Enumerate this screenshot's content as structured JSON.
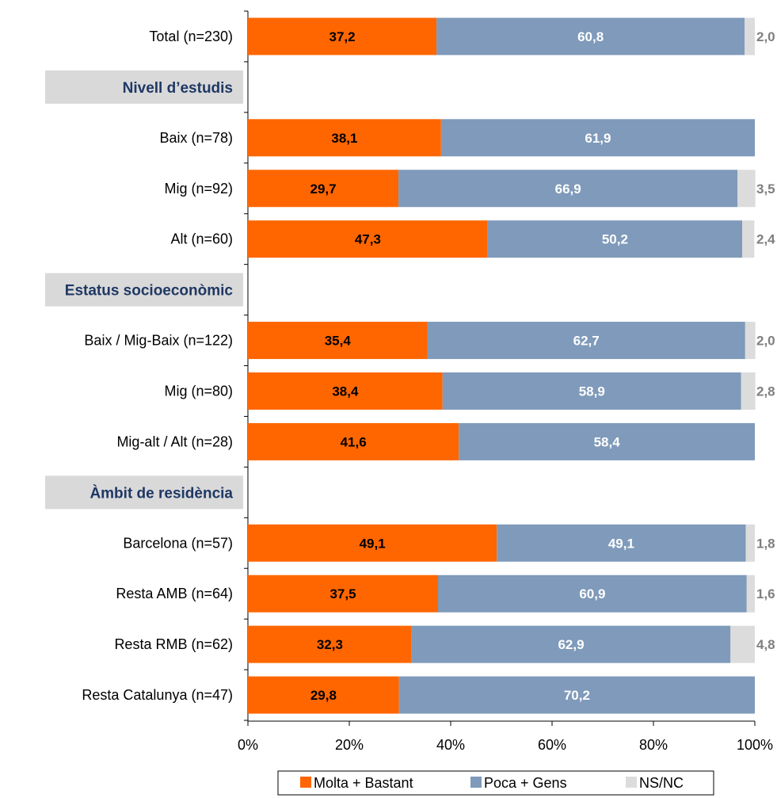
{
  "chart_data": {
    "type": "bar",
    "orientation": "horizontal",
    "stacked": true,
    "xlim": [
      0,
      100
    ],
    "x_ticks": [
      "0%",
      "20%",
      "40%",
      "60%",
      "80%",
      "100%"
    ],
    "legend_position": "bottom",
    "series": [
      {
        "name": "Molta + Bastant",
        "color": "#ff6600",
        "label_color": "#000000"
      },
      {
        "name": "Poca + Gens",
        "color": "#7f9aba",
        "label_color": "#ffffff"
      },
      {
        "name": "NS/NC",
        "color": "#dcdcdc",
        "label_color": "#7f7f7f"
      }
    ],
    "rows": [
      {
        "kind": "bar",
        "label": "Total (n=230)",
        "values": [
          37.2,
          60.8,
          2.0
        ],
        "labels": [
          "37,2",
          "60,8",
          "2,0"
        ]
      },
      {
        "kind": "section",
        "label": "Nivell d’estudis"
      },
      {
        "kind": "bar",
        "label": "Baix (n=78)",
        "values": [
          38.1,
          61.9,
          0
        ],
        "labels": [
          "38,1",
          "61,9",
          ""
        ]
      },
      {
        "kind": "bar",
        "label": "Mig (n=92)",
        "values": [
          29.7,
          66.9,
          3.5
        ],
        "labels": [
          "29,7",
          "66,9",
          "3,5"
        ]
      },
      {
        "kind": "bar",
        "label": "Alt (n=60)",
        "values": [
          47.3,
          50.2,
          2.4
        ],
        "labels": [
          "47,3",
          "50,2",
          "2,4"
        ]
      },
      {
        "kind": "section",
        "label": "Estatus socioeconòmic"
      },
      {
        "kind": "bar",
        "label": "Baix / Mig-Baix (n=122)",
        "values": [
          35.4,
          62.7,
          2.0
        ],
        "labels": [
          "35,4",
          "62,7",
          "2,0"
        ]
      },
      {
        "kind": "bar",
        "label": "Mig (n=80)",
        "values": [
          38.4,
          58.9,
          2.8
        ],
        "labels": [
          "38,4",
          "58,9",
          "2,8"
        ]
      },
      {
        "kind": "bar",
        "label": "Mig-alt / Alt (n=28)",
        "values": [
          41.6,
          58.4,
          0
        ],
        "labels": [
          "41,6",
          "58,4",
          ""
        ]
      },
      {
        "kind": "section",
        "label": "Àmbit de residència"
      },
      {
        "kind": "bar",
        "label": "Barcelona  (n=57)",
        "values": [
          49.1,
          49.1,
          1.8
        ],
        "labels": [
          "49,1",
          "49,1",
          "1,8"
        ]
      },
      {
        "kind": "bar",
        "label": "Resta AMB  (n=64)",
        "values": [
          37.5,
          60.9,
          1.6
        ],
        "labels": [
          "37,5",
          "60,9",
          "1,6"
        ]
      },
      {
        "kind": "bar",
        "label": "Resta RMB  (n=62)",
        "values": [
          32.3,
          62.9,
          4.8
        ],
        "labels": [
          "32,3",
          "62,9",
          "4,8"
        ]
      },
      {
        "kind": "bar",
        "label": "Resta Catalunya  (n=47)",
        "values": [
          29.8,
          70.2,
          0
        ],
        "labels": [
          "29,8",
          "70,2",
          ""
        ]
      }
    ]
  }
}
